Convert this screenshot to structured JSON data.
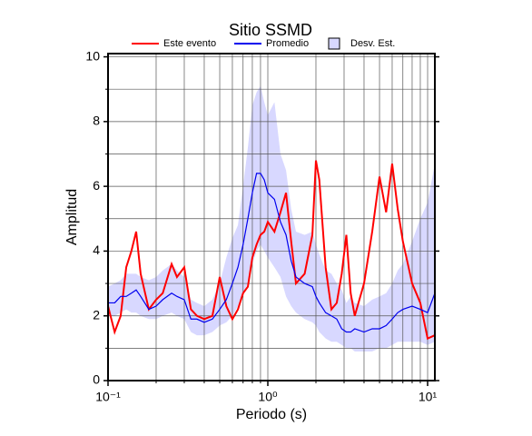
{
  "chart_data": {
    "type": "line",
    "title": "Sitio SSMD",
    "xlabel": "Periodo (s)",
    "ylabel": "Amplitud",
    "xscale": "log",
    "grid": true,
    "legend": "top",
    "xlim": [
      0.1,
      11.1
    ],
    "ylim": [
      0,
      10.1
    ],
    "xticks": [
      {
        "value": 0.1,
        "label": "10⁻¹"
      },
      {
        "value": 1,
        "label": "10⁰"
      },
      {
        "value": 10,
        "label": "10¹"
      }
    ],
    "x_minor_ticks": [
      0.2,
      0.3,
      0.4,
      0.5,
      0.6,
      0.7,
      0.8,
      0.9,
      2,
      3,
      4,
      5,
      6,
      7,
      8,
      9
    ],
    "yticks": [
      0,
      2,
      4,
      6,
      8,
      10
    ],
    "y_minor_ticks": [
      1,
      3,
      5,
      7,
      9
    ],
    "x": [
      0.1,
      0.11,
      0.12,
      0.13,
      0.14,
      0.15,
      0.16,
      0.18,
      0.2,
      0.22,
      0.25,
      0.27,
      0.3,
      0.33,
      0.36,
      0.4,
      0.45,
      0.5,
      0.55,
      0.6,
      0.65,
      0.7,
      0.75,
      0.8,
      0.85,
      0.9,
      0.95,
      1.0,
      1.1,
      1.2,
      1.3,
      1.4,
      1.5,
      1.7,
      1.9,
      2.0,
      2.1,
      2.3,
      2.5,
      2.7,
      2.9,
      3.1,
      3.3,
      3.5,
      4,
      4.5,
      5,
      5.5,
      6,
      6.5,
      7,
      8,
      9,
      10,
      11.1
    ],
    "series": [
      {
        "name": "Este evento",
        "color": "#ff0000",
        "kind": "line",
        "values": [
          2.3,
          1.5,
          2.0,
          3.5,
          4.0,
          4.6,
          3.3,
          2.2,
          2.5,
          2.7,
          3.6,
          3.2,
          3.5,
          2.2,
          2.0,
          1.9,
          2.0,
          3.2,
          2.3,
          1.9,
          2.2,
          2.7,
          2.9,
          3.8,
          4.2,
          4.5,
          4.6,
          4.9,
          4.6,
          5.2,
          5.8,
          4.3,
          3.0,
          3.3,
          4.5,
          6.8,
          6.2,
          3.5,
          2.2,
          2.4,
          3.3,
          4.5,
          2.7,
          2.0,
          3.0,
          4.6,
          6.3,
          5.2,
          6.7,
          5.3,
          4.3,
          3.0,
          2.4,
          1.3,
          1.4
        ]
      },
      {
        "name": "Promedio",
        "color": "#0000ee",
        "kind": "line",
        "values": [
          2.4,
          2.4,
          2.6,
          2.6,
          2.7,
          2.8,
          2.6,
          2.2,
          2.3,
          2.5,
          2.7,
          2.6,
          2.5,
          1.9,
          1.9,
          1.8,
          1.9,
          2.2,
          2.5,
          3.0,
          3.5,
          4.2,
          5.0,
          5.8,
          6.4,
          6.4,
          6.2,
          5.8,
          5.6,
          4.9,
          4.5,
          3.7,
          3.2,
          3.0,
          2.9,
          2.6,
          2.4,
          2.1,
          2.0,
          1.9,
          1.6,
          1.5,
          1.5,
          1.6,
          1.5,
          1.6,
          1.6,
          1.7,
          1.9,
          2.1,
          2.2,
          2.3,
          2.2,
          2.1,
          2.7
        ]
      },
      {
        "name": "Desv. Est.",
        "color": "#d8d8ff",
        "kind": "band",
        "upper": [
          2.9,
          3.0,
          3.1,
          3.3,
          3.3,
          3.3,
          3.2,
          3.1,
          3.2,
          3.4,
          3.6,
          3.4,
          3.2,
          2.5,
          2.4,
          2.3,
          2.5,
          3.0,
          3.8,
          4.4,
          4.8,
          6.0,
          7.2,
          8.5,
          8.9,
          9.1,
          8.6,
          8.2,
          8.6,
          7.0,
          6.5,
          5.3,
          4.6,
          4.5,
          4.6,
          4.2,
          3.9,
          3.4,
          3.3,
          3.0,
          2.8,
          2.4,
          2.6,
          2.4,
          2.3,
          2.5,
          2.6,
          2.7,
          3.0,
          3.4,
          3.6,
          4.3,
          5.0,
          5.5,
          6.7
        ],
        "lower": [
          2.0,
          2.0,
          2.1,
          2.2,
          2.1,
          2.1,
          2.0,
          1.9,
          1.9,
          2.0,
          2.1,
          2.0,
          1.9,
          1.5,
          1.4,
          1.4,
          1.5,
          1.7,
          1.8,
          2.0,
          2.3,
          2.7,
          3.0,
          3.6,
          4.0,
          4.2,
          4.0,
          3.8,
          3.5,
          3.2,
          2.6,
          2.3,
          2.1,
          1.9,
          1.8,
          1.7,
          1.5,
          1.3,
          1.2,
          1.2,
          1.1,
          1.0,
          1.0,
          0.9,
          0.9,
          0.9,
          1.0,
          1.0,
          1.1,
          1.2,
          1.2,
          1.2,
          1.2,
          1.1,
          1.2
        ]
      }
    ]
  }
}
